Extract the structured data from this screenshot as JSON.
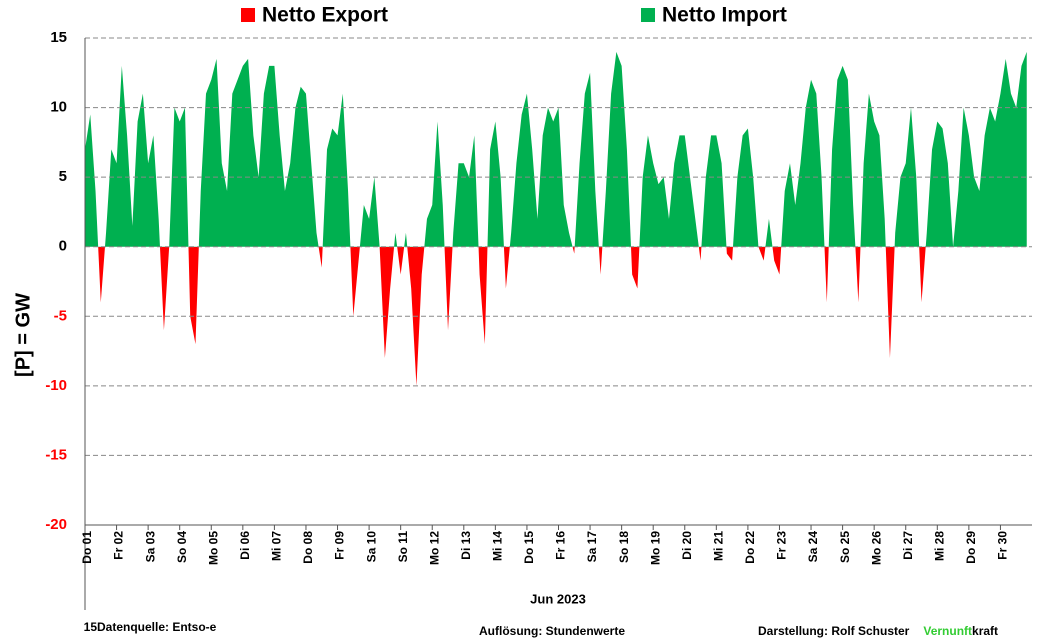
{
  "chart_data": {
    "type": "area",
    "legend": [
      {
        "name": "Netto Export",
        "color": "#ff0000"
      },
      {
        "name": "Netto Import",
        "color": "#00b050"
      }
    ],
    "ylabel": "[P] = GW",
    "xlabel": "Jun 2023",
    "negative_tick_color": "#ff0000",
    "grid": true,
    "ylim": [
      -20,
      15
    ],
    "yticks": [
      -20,
      -15,
      -10,
      -5,
      0,
      5,
      10,
      15
    ],
    "xlim": [
      0,
      720
    ],
    "xticks": [
      {
        "value": 0,
        "label": "Do 01"
      },
      {
        "value": 24,
        "label": "Fr 02"
      },
      {
        "value": 48,
        "label": "Sa 03"
      },
      {
        "value": 72,
        "label": "So 04"
      },
      {
        "value": 96,
        "label": "Mo 05"
      },
      {
        "value": 120,
        "label": "Di 06"
      },
      {
        "value": 144,
        "label": "Mi 07"
      },
      {
        "value": 168,
        "label": "Do 08"
      },
      {
        "value": 192,
        "label": "Fr 09"
      },
      {
        "value": 216,
        "label": "Sa 10"
      },
      {
        "value": 240,
        "label": "So 11"
      },
      {
        "value": 264,
        "label": "Mo 12"
      },
      {
        "value": 288,
        "label": "Di 13"
      },
      {
        "value": 312,
        "label": "Mi 14"
      },
      {
        "value": 336,
        "label": "Do 15"
      },
      {
        "value": 360,
        "label": "Fr 16"
      },
      {
        "value": 384,
        "label": "Sa 17"
      },
      {
        "value": 408,
        "label": "So 18"
      },
      {
        "value": 432,
        "label": "Mo 19"
      },
      {
        "value": 456,
        "label": "Di 20"
      },
      {
        "value": 480,
        "label": "Mi 21"
      },
      {
        "value": 504,
        "label": "Do 22"
      },
      {
        "value": 528,
        "label": "Fr 23"
      },
      {
        "value": 552,
        "label": "Sa 24"
      },
      {
        "value": 576,
        "label": "So 25"
      },
      {
        "value": 600,
        "label": "Mo 26"
      },
      {
        "value": 624,
        "label": "Di 27"
      },
      {
        "value": 648,
        "label": "Mi 28"
      },
      {
        "value": 672,
        "label": "Do 29"
      },
      {
        "value": 696,
        "label": "Fr 30"
      }
    ],
    "x": [
      0,
      4,
      8,
      12,
      16,
      20,
      24,
      28,
      32,
      36,
      40,
      44,
      48,
      52,
      56,
      60,
      64,
      68,
      72,
      76,
      80,
      84,
      88,
      92,
      96,
      100,
      104,
      108,
      112,
      116,
      120,
      124,
      128,
      132,
      136,
      140,
      144,
      148,
      152,
      156,
      160,
      164,
      168,
      172,
      176,
      180,
      184,
      188,
      192,
      196,
      200,
      204,
      208,
      212,
      216,
      220,
      224,
      228,
      232,
      236,
      240,
      244,
      248,
      252,
      256,
      260,
      264,
      268,
      272,
      276,
      280,
      284,
      288,
      292,
      296,
      300,
      304,
      308,
      312,
      316,
      320,
      324,
      328,
      332,
      336,
      340,
      344,
      348,
      352,
      356,
      360,
      364,
      368,
      372,
      376,
      380,
      384,
      388,
      392,
      396,
      400,
      404,
      408,
      412,
      416,
      420,
      424,
      428,
      432,
      436,
      440,
      444,
      448,
      452,
      456,
      460,
      464,
      468,
      472,
      476,
      480,
      484,
      488,
      492,
      496,
      500,
      504,
      508,
      512,
      516,
      520,
      524,
      528,
      532,
      536,
      540,
      544,
      548,
      552,
      556,
      560,
      564,
      568,
      572,
      576,
      580,
      584,
      588,
      592,
      596,
      600,
      604,
      608,
      612,
      616,
      620,
      624,
      628,
      632,
      636,
      640,
      644,
      648,
      652,
      656,
      660,
      664,
      668,
      672,
      676,
      680,
      684,
      688,
      692,
      696,
      700,
      704,
      708,
      712,
      716
    ],
    "values": [
      7,
      9.5,
      4,
      -4,
      1,
      7,
      6,
      13,
      8,
      1.5,
      9,
      11,
      6,
      8,
      2,
      -6,
      0,
      10,
      9,
      10,
      -5,
      -7,
      4,
      11,
      12,
      13.5,
      6,
      4,
      11,
      12,
      13,
      13.5,
      8,
      5,
      11,
      13,
      13,
      8,
      4,
      6,
      10,
      11.5,
      11,
      6,
      1,
      -1.5,
      7,
      8.5,
      8,
      11,
      4,
      -5,
      -1,
      3,
      2,
      5,
      0,
      -8,
      -3,
      1,
      -2,
      1,
      -3,
      -10,
      -2,
      2,
      3,
      9,
      3,
      -6,
      1,
      6,
      6,
      5,
      8,
      -2,
      -7,
      7,
      9,
      5,
      -3,
      1,
      6,
      9.5,
      11,
      7,
      2,
      8,
      10,
      9,
      10,
      3,
      1,
      -0.5,
      6,
      11,
      12.5,
      4,
      -2,
      4,
      11,
      14,
      13,
      7,
      -2,
      -3,
      5,
      8,
      6,
      4.5,
      5,
      2,
      6,
      8,
      8,
      5,
      2,
      -1,
      5,
      8,
      8,
      6,
      -0.5,
      -1,
      5,
      8,
      8.5,
      5,
      0,
      -1,
      2,
      -1,
      -2,
      4,
      6,
      3,
      6,
      10,
      12,
      11,
      5,
      -4,
      7,
      12,
      13,
      12,
      3,
      -4,
      6,
      11,
      9,
      8,
      2,
      -8,
      1,
      5,
      6,
      10,
      5,
      -4,
      1,
      7,
      9,
      8.5,
      6,
      0,
      4,
      10,
      8,
      5,
      4,
      8,
      10,
      9,
      11,
      13.5,
      11,
      10,
      13,
      14
    ]
  },
  "footer": {
    "source": "15Datenquelle: Entso-e",
    "resolution": "Auflösung: Stundenwerte",
    "author": "Darstellung:  Rolf Schuster",
    "brand_green": "Vernunft",
    "brand_black": "kraft"
  }
}
